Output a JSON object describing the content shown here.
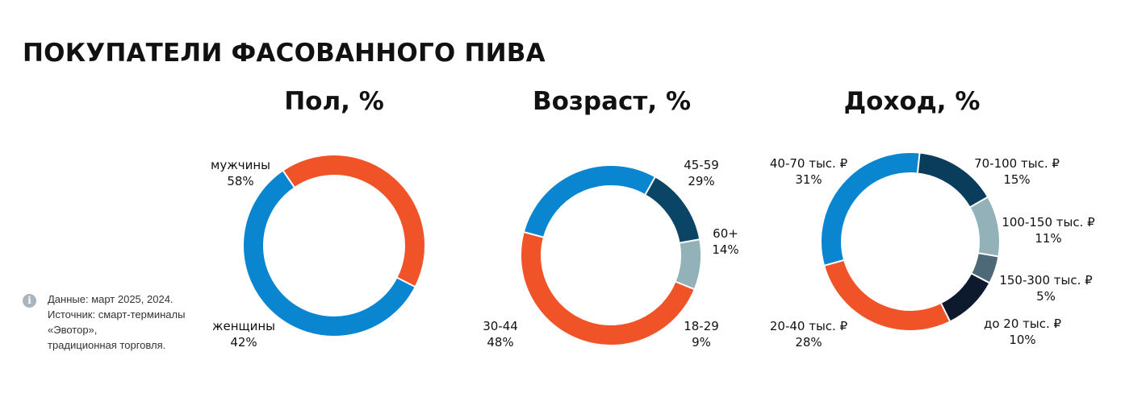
{
  "page_title": "ПОКУПАТЕЛИ ФАСОВАННОГО ПИВА",
  "note": {
    "icon": "info-icon",
    "lines": [
      "Данные: март 2025, 2024.",
      "Источник: смарт-терминалы",
      "«Эвотор»,",
      "традиционная торговля."
    ]
  },
  "chart_data": [
    {
      "type": "pie",
      "title": "Пол, %",
      "series": [
        {
          "name": "мужчины",
          "value": 58,
          "label": "58%",
          "color": "#0a86d0"
        },
        {
          "name": "женщины",
          "value": 42,
          "label": "42%",
          "color": "#f05327"
        }
      ]
    },
    {
      "type": "pie",
      "title": "Возраст, %",
      "series": [
        {
          "name": "45-59",
          "value": 29,
          "label": "29%",
          "color": "#0a86d0"
        },
        {
          "name": "60+",
          "value": 14,
          "label": "14%",
          "color": "#0a4566"
        },
        {
          "name": "18-29",
          "value": 9,
          "label": "9%",
          "color": "#93b1b8"
        },
        {
          "name": "30-44",
          "value": 48,
          "label": "48%",
          "color": "#f05327"
        }
      ]
    },
    {
      "type": "pie",
      "title": "Доход, %",
      "series": [
        {
          "name": "70-100 тыс. ₽",
          "value": 15,
          "label": "15%",
          "color": "#0a3c5c"
        },
        {
          "name": "100-150 тыс. ₽",
          "value": 11,
          "label": "11%",
          "color": "#93b1b8"
        },
        {
          "name": "150-300 тыс. ₽",
          "value": 5,
          "label": "5%",
          "color": "#4d6977"
        },
        {
          "name": "до 20 тыс. ₽",
          "value": 10,
          "label": "10%",
          "color": "#0d1a2e"
        },
        {
          "name": "20-40 тыс. ₽",
          "value": 28,
          "label": "28%",
          "color": "#f05327"
        },
        {
          "name": "40-70 тыс. ₽",
          "value": 31,
          "label": "31%",
          "color": "#0a86d0"
        }
      ]
    }
  ]
}
